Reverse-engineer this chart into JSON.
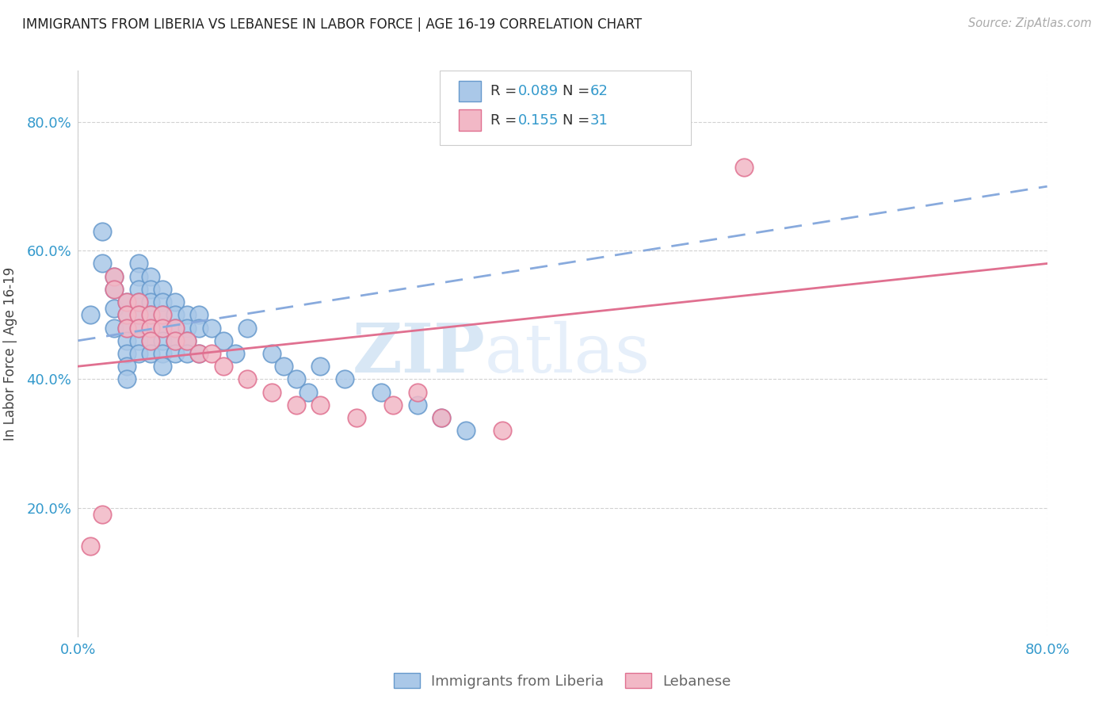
{
  "title": "IMMIGRANTS FROM LIBERIA VS LEBANESE IN LABOR FORCE | AGE 16-19 CORRELATION CHART",
  "source": "Source: ZipAtlas.com",
  "ylabel": "In Labor Force | Age 16-19",
  "xlim": [
    0.0,
    0.8
  ],
  "ylim": [
    0.0,
    0.88
  ],
  "xtick_positions": [
    0.0,
    0.8
  ],
  "xticklabels": [
    "0.0%",
    "80.0%"
  ],
  "ytick_positions": [
    0.2,
    0.4,
    0.6,
    0.8
  ],
  "ytick_labels": [
    "20.0%",
    "40.0%",
    "60.0%",
    "80.0%"
  ],
  "R1": 0.089,
  "N1": 62,
  "R2": 0.155,
  "N2": 31,
  "color_liberia_fill": "#aac8e8",
  "color_liberia_edge": "#6699cc",
  "color_lebanese_fill": "#f2b8c6",
  "color_lebanese_edge": "#e07090",
  "trend_color_liberia": "#88aadd",
  "trend_color_lebanese": "#e07090",
  "blue_text": "#3399cc",
  "watermark_zip": "ZIP",
  "watermark_atlas": "atlas",
  "liberia_x": [
    0.01,
    0.02,
    0.02,
    0.03,
    0.03,
    0.03,
    0.03,
    0.04,
    0.04,
    0.04,
    0.04,
    0.04,
    0.04,
    0.04,
    0.05,
    0.05,
    0.05,
    0.05,
    0.05,
    0.05,
    0.05,
    0.05,
    0.06,
    0.06,
    0.06,
    0.06,
    0.06,
    0.06,
    0.06,
    0.07,
    0.07,
    0.07,
    0.07,
    0.07,
    0.07,
    0.07,
    0.08,
    0.08,
    0.08,
    0.08,
    0.08,
    0.09,
    0.09,
    0.09,
    0.09,
    0.1,
    0.1,
    0.1,
    0.11,
    0.12,
    0.13,
    0.14,
    0.16,
    0.17,
    0.18,
    0.19,
    0.2,
    0.22,
    0.25,
    0.28,
    0.3,
    0.32
  ],
  "liberia_y": [
    0.5,
    0.63,
    0.58,
    0.56,
    0.54,
    0.51,
    0.48,
    0.52,
    0.5,
    0.48,
    0.46,
    0.44,
    0.42,
    0.4,
    0.58,
    0.56,
    0.54,
    0.52,
    0.5,
    0.48,
    0.46,
    0.44,
    0.56,
    0.54,
    0.52,
    0.5,
    0.48,
    0.46,
    0.44,
    0.54,
    0.52,
    0.5,
    0.48,
    0.46,
    0.44,
    0.42,
    0.52,
    0.5,
    0.48,
    0.46,
    0.44,
    0.5,
    0.48,
    0.46,
    0.44,
    0.5,
    0.48,
    0.44,
    0.48,
    0.46,
    0.44,
    0.48,
    0.44,
    0.42,
    0.4,
    0.38,
    0.42,
    0.4,
    0.38,
    0.36,
    0.34,
    0.32
  ],
  "lebanese_x": [
    0.01,
    0.02,
    0.03,
    0.03,
    0.04,
    0.04,
    0.04,
    0.05,
    0.05,
    0.05,
    0.06,
    0.06,
    0.06,
    0.07,
    0.07,
    0.08,
    0.08,
    0.09,
    0.1,
    0.11,
    0.12,
    0.14,
    0.16,
    0.18,
    0.2,
    0.23,
    0.26,
    0.28,
    0.3,
    0.35,
    0.55
  ],
  "lebanese_y": [
    0.14,
    0.19,
    0.56,
    0.54,
    0.52,
    0.5,
    0.48,
    0.52,
    0.5,
    0.48,
    0.5,
    0.48,
    0.46,
    0.5,
    0.48,
    0.48,
    0.46,
    0.46,
    0.44,
    0.44,
    0.42,
    0.4,
    0.38,
    0.36,
    0.36,
    0.34,
    0.36,
    0.38,
    0.34,
    0.32,
    0.73
  ]
}
